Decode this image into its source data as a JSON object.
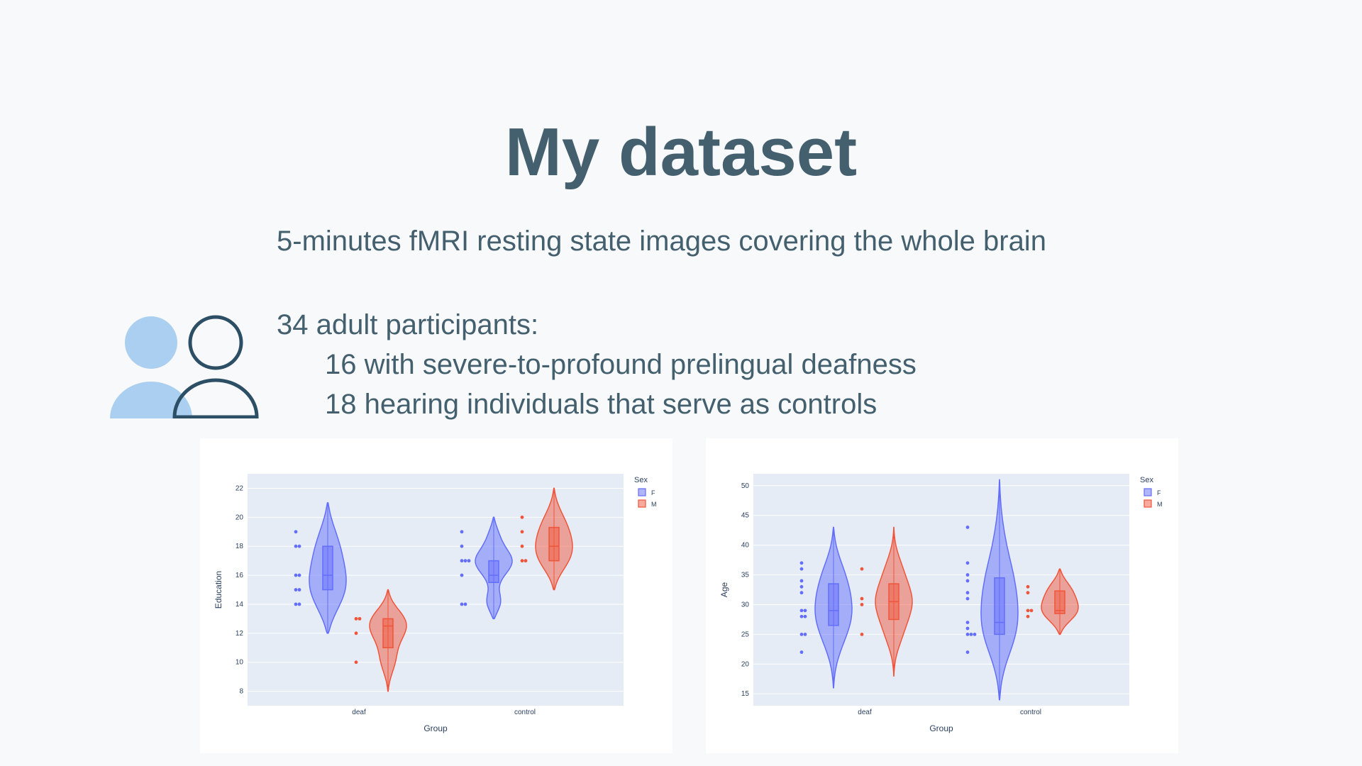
{
  "slide": {
    "title": "My dataset",
    "subtitle": "5-minutes fMRI resting state images covering the whole brain",
    "participants": {
      "heading": "34 adult participants:",
      "items": [
        "16 with severe-to-profound prelingual deafness",
        "18 hearing individuals that serve as controls"
      ]
    },
    "icon": "people-icon",
    "colors": {
      "text": "#44606f",
      "icon_fill": "#abcff0",
      "icon_stroke": "#2c4f66"
    }
  },
  "chart_data": [
    {
      "type": "violin",
      "xlabel": "Group",
      "ylabel": "Education",
      "categories": [
        "deaf",
        "control"
      ],
      "ylim": [
        7,
        23
      ],
      "yticks": [
        8,
        10,
        12,
        14,
        16,
        18,
        20,
        22
      ],
      "legend": {
        "title": "Sex",
        "placement": "top-right"
      },
      "series": [
        {
          "name": "F",
          "color": "#636efa",
          "groups": [
            {
              "category": "deaf",
              "min": 12,
              "q1": 15,
              "median": 16,
              "q3": 18,
              "max": 21,
              "points": [
                19,
                18,
                18,
                16,
                16,
                15,
                15,
                14,
                14
              ]
            },
            {
              "category": "control",
              "min": 13,
              "q1": 15.5,
              "median": 16,
              "q3": 17,
              "max": 20,
              "points": [
                19,
                18,
                17,
                17,
                17,
                16,
                14,
                14
              ]
            }
          ]
        },
        {
          "name": "M",
          "color": "#ef553b",
          "groups": [
            {
              "category": "deaf",
              "min": 8,
              "q1": 11,
              "median": 12.5,
              "q3": 13,
              "max": 15,
              "points": [
                13,
                13,
                12,
                10
              ]
            },
            {
              "category": "control",
              "min": 15,
              "q1": 17,
              "median": 18,
              "q3": 19.3,
              "max": 22,
              "points": [
                20,
                19,
                18,
                17,
                17
              ]
            }
          ]
        }
      ]
    },
    {
      "type": "violin",
      "xlabel": "Group",
      "ylabel": "Age",
      "categories": [
        "deaf",
        "control"
      ],
      "ylim": [
        13,
        52
      ],
      "yticks": [
        15,
        20,
        25,
        30,
        35,
        40,
        45,
        50
      ],
      "legend": {
        "title": "Sex",
        "placement": "top-right"
      },
      "series": [
        {
          "name": "F",
          "color": "#636efa",
          "groups": [
            {
              "category": "deaf",
              "min": 16,
              "q1": 26.5,
              "median": 29,
              "q3": 33.5,
              "max": 43,
              "points": [
                37,
                36,
                34,
                33,
                32,
                29,
                29,
                28,
                28,
                25,
                25,
                22
              ]
            },
            {
              "category": "control",
              "min": 14,
              "q1": 25,
              "median": 27,
              "q3": 34.5,
              "max": 51,
              "points": [
                43,
                37,
                35,
                34,
                32,
                31,
                27,
                26,
                25,
                25,
                25,
                22
              ]
            }
          ]
        },
        {
          "name": "M",
          "color": "#ef553b",
          "groups": [
            {
              "category": "deaf",
              "min": 18,
              "q1": 27.5,
              "median": 30.5,
              "q3": 33.5,
              "max": 43,
              "points": [
                36,
                31,
                30,
                25
              ]
            },
            {
              "category": "control",
              "min": 25,
              "q1": 28.5,
              "median": 29,
              "q3": 32.3,
              "max": 36,
              "points": [
                33,
                32,
                29,
                29,
                28
              ]
            }
          ]
        }
      ]
    }
  ]
}
